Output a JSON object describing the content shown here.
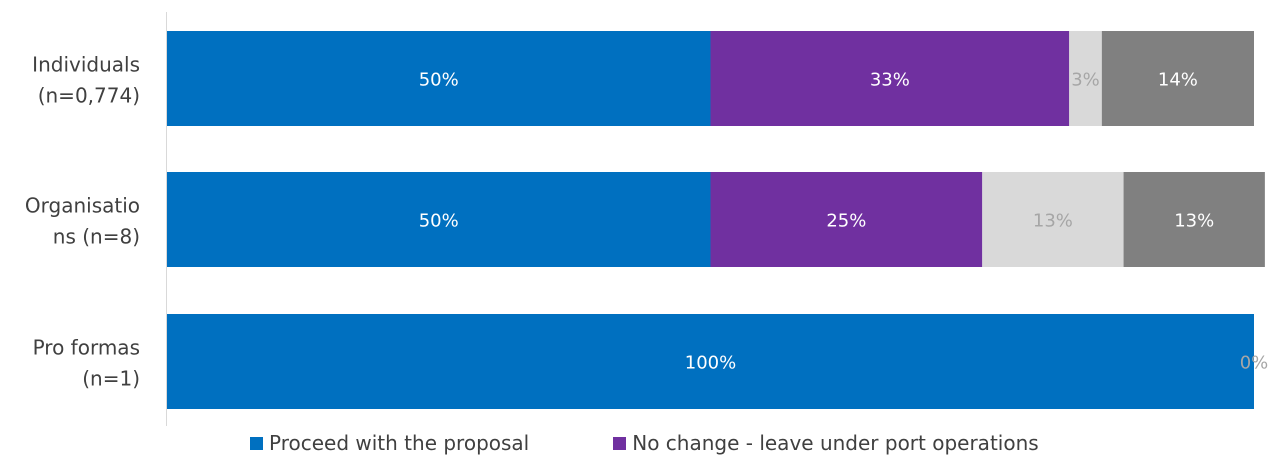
{
  "chart_data": {
    "type": "bar",
    "orientation": "horizontal",
    "stacked": true,
    "percent_stacked": true,
    "categories": [
      "Individuals (n=0,774)",
      "Organisations (n=8)",
      "Pro formas (n=1)"
    ],
    "series": [
      {
        "name": "Proceed with the proposal",
        "values": [
          50,
          50,
          100
        ],
        "labels": [
          "50%",
          "50%",
          "100%"
        ],
        "color": "#0070C0",
        "label_color": "#FFFFFF"
      },
      {
        "name": "No change - leave under port operations",
        "values": [
          33,
          25,
          0
        ],
        "labels": [
          "33%",
          "25%",
          ""
        ],
        "color": "#7030A0",
        "label_color": "#FFFFFF"
      },
      {
        "values": [
          3,
          13,
          0
        ],
        "labels": [
          "3%",
          "13%",
          "0%"
        ],
        "color": "#D9D9D9",
        "label_color": "#A6A6A6"
      },
      {
        "values": [
          14,
          13,
          0
        ],
        "labels": [
          "14%",
          "13%",
          ""
        ],
        "color": "#808080",
        "label_color": "#FFFFFF"
      }
    ],
    "category_label_lines": [
      [
        "Individuals",
        "(n=0,774)"
      ],
      [
        "Organisatio",
        "ns (n=8)"
      ],
      [
        "Pro formas",
        "(n=1)"
      ]
    ],
    "xlim": [
      0,
      100
    ],
    "grid": false,
    "legend": "bottom"
  },
  "legend": {
    "items": [
      {
        "label": "Proceed with the proposal",
        "color": "#0070C0"
      },
      {
        "label": "No change - leave under port operations",
        "color": "#7030A0"
      }
    ]
  }
}
